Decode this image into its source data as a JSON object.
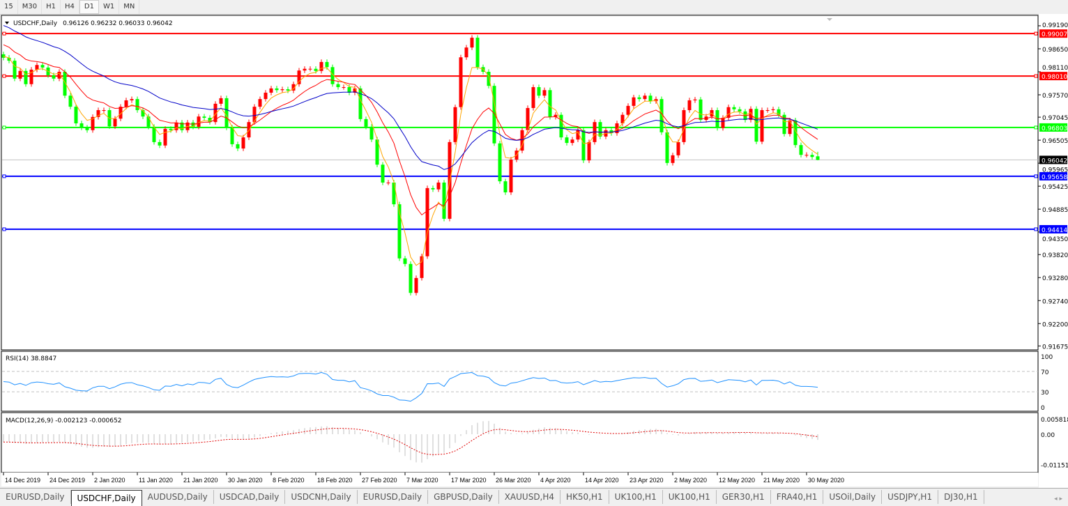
{
  "toolbar": {
    "timeframes": [
      "15",
      "M30",
      "H1",
      "H4",
      "D1",
      "W1",
      "MN"
    ],
    "active": "D1"
  },
  "chart": {
    "symbol_label": "USDCHF,Daily",
    "ohlc_label": "0.96126 0.96232 0.96033 0.96042",
    "menu_icon": "triangle-down-icon"
  },
  "chart_data": {
    "type": "candlestick",
    "colors": {
      "up": "#ff0000",
      "down": "#00ff00",
      "ma_fast": "#ffa500",
      "ma_mid": "#ff0000",
      "ma_slow": "#0000c8",
      "rsi": "#1e90ff",
      "macd_hist": "#c0c0c0",
      "macd_signal": "#e00000"
    },
    "last": {
      "open": 0.96126,
      "high": 0.96232,
      "low": 0.96033,
      "close": 0.96042
    },
    "close": [
      0.9844,
      0.9837,
      0.9795,
      0.9813,
      0.9782,
      0.9816,
      0.9827,
      0.9821,
      0.9803,
      0.9795,
      0.9811,
      0.9755,
      0.9729,
      0.969,
      0.968,
      0.9674,
      0.9705,
      0.9721,
      0.9721,
      0.9683,
      0.9701,
      0.9729,
      0.9744,
      0.9747,
      0.9721,
      0.9706,
      0.9682,
      0.9646,
      0.9638,
      0.9677,
      0.9674,
      0.9692,
      0.9674,
      0.9692,
      0.9682,
      0.9706,
      0.9703,
      0.9693,
      0.9736,
      0.9749,
      0.968,
      0.9641,
      0.9631,
      0.9657,
      0.9693,
      0.9729,
      0.9747,
      0.9762,
      0.9772,
      0.9768,
      0.977,
      0.9767,
      0.9782,
      0.9814,
      0.9818,
      0.9818,
      0.9813,
      0.9834,
      0.9822,
      0.9782,
      0.9775,
      0.9775,
      0.9762,
      0.9772,
      0.97,
      0.9682,
      0.9652,
      0.9593,
      0.9551,
      0.9551,
      0.95,
      0.9373,
      0.936,
      0.9292,
      0.9327,
      0.9378,
      0.9538,
      0.9535,
      0.9551,
      0.9466,
      0.9646,
      0.9728,
      0.9845,
      0.9868,
      0.9891,
      0.9822,
      0.9811,
      0.9778,
      0.9643,
      0.9554,
      0.9528,
      0.9605,
      0.9626,
      0.9674,
      0.9726,
      0.9775,
      0.9755,
      0.9768,
      0.9705,
      0.971,
      0.9657,
      0.9644,
      0.9652,
      0.9674,
      0.9603,
      0.9646,
      0.9693,
      0.9659,
      0.9674,
      0.9667,
      0.969,
      0.971,
      0.9731,
      0.9751,
      0.9747,
      0.9755,
      0.9742,
      0.9747,
      0.9669,
      0.9597,
      0.9615,
      0.9646,
      0.9721,
      0.9744,
      0.9746,
      0.9698,
      0.9706,
      0.9721,
      0.9679,
      0.9703,
      0.9728,
      0.9723,
      0.9718,
      0.9698,
      0.9724,
      0.9647,
      0.9721,
      0.9721,
      0.9723,
      0.971,
      0.9665,
      0.9697,
      0.9639,
      0.9616,
      0.9616,
      0.9611,
      0.96042
    ],
    "price_axis": [
      "0.99190",
      "0.98650",
      "0.98110",
      "0.97570",
      "0.97045",
      "0.96505",
      "0.95965",
      "0.95425",
      "0.94885",
      "0.94350",
      "0.93820",
      "0.93280",
      "0.92740",
      "0.92200",
      "0.91675"
    ],
    "price_range": [
      0.91675,
      0.9919
    ],
    "levels": [
      {
        "value": "0.99007",
        "color": "#ff0000"
      },
      {
        "value": "0.98010",
        "color": "#ff0000"
      },
      {
        "value": "0.96803",
        "color": "#00ff00"
      },
      {
        "value": "0.95658",
        "color": "#0000ff"
      },
      {
        "value": "0.94414",
        "color": "#0000ff"
      }
    ],
    "current_price": "0.96042",
    "x_labels": [
      "14 Dec 2019",
      "24 Dec 2019",
      "2 Jan 2020",
      "11 Jan 2020",
      "21 Jan 2020",
      "30 Jan 2020",
      "8 Feb 2020",
      "18 Feb 2020",
      "27 Feb 2020",
      "7 Mar 2020",
      "17 Mar 2020",
      "26 Mar 2020",
      "4 Apr 2020",
      "14 Apr 2020",
      "23 Apr 2020",
      "2 May 2020",
      "12 May 2020",
      "21 May 2020",
      "30 May 2020"
    ]
  },
  "rsi": {
    "label": "RSI(14) 38.8847",
    "axis": [
      "100",
      "70",
      "30",
      "0"
    ],
    "levels": [
      70,
      30
    ],
    "range": [
      0,
      100
    ]
  },
  "macd": {
    "label": "MACD(12,26,9) -0.002123 -0.000652",
    "axis": [
      "0.005818",
      "0.00",
      "-0.011514"
    ],
    "range": [
      -0.011514,
      0.005818
    ]
  },
  "tabs": [
    "EURUSD,Daily",
    "USDCHF,Daily",
    "AUDUSD,Daily",
    "USDCAD,Daily",
    "USDCNH,Daily",
    "EURUSD,Daily",
    "GBPUSD,Daily",
    "XAUUSD,H4",
    "HK50,H1",
    "UK100,H1",
    "UK100,H1",
    "GER30,H1",
    "FRA40,H1",
    "USOil,Daily",
    "USDJPY,H1",
    "DJ30,H1"
  ],
  "active_tab": 1,
  "tab_scroll": "◂ ▸"
}
